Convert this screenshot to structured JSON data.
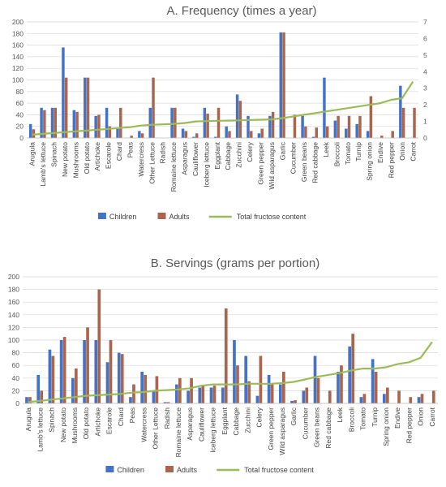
{
  "chart_data": [
    {
      "type": "bar",
      "title": "A. Frequency (times a year)",
      "xlabel": "",
      "ylabel": "",
      "ylim": [
        0,
        200
      ],
      "y_ticks": [
        "0",
        "20",
        "40",
        "60",
        "80",
        "100",
        "120",
        "140",
        "160",
        "180",
        "200"
      ],
      "y2lim": [
        0,
        7
      ],
      "y2_ticks": [
        "0",
        "1",
        "2",
        "3",
        "4",
        "5",
        "6",
        "7"
      ],
      "grid": true,
      "legend_position": "bottom",
      "categories": [
        "Arugula",
        "Lamb's lettuce",
        "Spinach",
        "New potato",
        "Mushrooms",
        "Old potato",
        "Artichoke",
        "Escarole",
        "Chard",
        "Peas",
        "Watercress",
        "Other Lettuce",
        "Radish",
        "Romaine lettuce",
        "Asparagus",
        "Cauliflower",
        "Iceberg lettuce",
        "Eggplant",
        "Cabbage",
        "Zucchini",
        "Celery",
        "Green pepper",
        "Wild asparagus",
        "Garlic",
        "Cucumber",
        "Green beans",
        "Red cabbage",
        "Leek",
        "Broccoli",
        "Tomato",
        "Turnip",
        "Spring onion",
        "Endive",
        "Red pepper",
        "Onion",
        "Carrot"
      ],
      "series": [
        {
          "name": "Children",
          "kind": "bar",
          "axis": "left",
          "color": "#4472c4",
          "values": [
            24,
            52,
            52,
            156,
            48,
            104,
            38,
            52,
            16,
            0,
            12,
            52,
            0,
            52,
            16,
            2,
            52,
            2,
            20,
            75,
            38,
            8,
            38,
            182,
            0,
            38,
            2,
            104,
            30,
            16,
            24,
            12,
            0,
            0,
            90,
            0
          ]
        },
        {
          "name": "Adults",
          "kind": "bar",
          "axis": "left",
          "color": "#a9654e",
          "values": [
            15,
            48,
            52,
            104,
            45,
            104,
            40,
            20,
            52,
            4,
            8,
            104,
            0,
            52,
            12,
            8,
            42,
            52,
            12,
            64,
            12,
            16,
            45,
            182,
            40,
            20,
            18,
            20,
            38,
            38,
            38,
            72,
            4,
            12,
            52,
            52
          ]
        },
        {
          "name": "Total fructose content",
          "kind": "line",
          "axis": "right",
          "color": "#9bbb59",
          "values": [
            0.2,
            0.25,
            0.3,
            0.35,
            0.4,
            0.45,
            0.5,
            0.55,
            0.6,
            0.65,
            0.75,
            0.8,
            0.82,
            0.85,
            0.9,
            1.0,
            1.02,
            1.04,
            1.05,
            1.06,
            1.08,
            1.1,
            1.12,
            1.2,
            1.3,
            1.4,
            1.5,
            1.6,
            1.7,
            1.8,
            1.9,
            2.0,
            2.1,
            2.3,
            2.4,
            3.4
          ]
        }
      ]
    },
    {
      "type": "bar",
      "title": "B. Servings (grams per portion)",
      "xlabel": "",
      "ylabel": "",
      "ylim": [
        0,
        200
      ],
      "y_ticks": [
        "0",
        "20",
        "40",
        "60",
        "80",
        "100",
        "120",
        "140",
        "160",
        "180",
        "200"
      ],
      "grid": true,
      "legend_position": "bottom",
      "categories": [
        "Arugula",
        "Lamb's lettuce",
        "Spinach",
        "New potato",
        "Mushrooms",
        "Old potato",
        "Artichoke",
        "Escarole",
        "Chard",
        "Peas",
        "Watercress",
        "Other Lettuce",
        "Radish",
        "Romaine lettuce",
        "Asparagus",
        "Cauliflower",
        "Iceberg lettuce",
        "Eggplant",
        "Cabbage",
        "Zucchini",
        "Celery",
        "Green pepper",
        "Wild asparagus",
        "Garlic",
        "Cucumber",
        "Green beans",
        "Red cabbage",
        "Leek",
        "Broccoli",
        "Tomato",
        "Turnip",
        "Spring onion",
        "Endive",
        "Red pepper",
        "Onion",
        "Carrot"
      ],
      "series": [
        {
          "name": "Children",
          "kind": "bar",
          "color": "#4472c4",
          "values": [
            10,
            45,
            85,
            100,
            40,
            100,
            100,
            65,
            80,
            10,
            50,
            20,
            2,
            30,
            20,
            25,
            25,
            25,
            100,
            75,
            12,
            45,
            30,
            4,
            20,
            75,
            0,
            50,
            90,
            10,
            70,
            15,
            0,
            0,
            10,
            0
          ]
        },
        {
          "name": "Adults",
          "kind": "bar",
          "color": "#a9654e",
          "values": [
            10,
            20,
            75,
            105,
            55,
            120,
            180,
            100,
            78,
            30,
            45,
            43,
            2,
            40,
            40,
            28,
            28,
            150,
            60,
            35,
            75,
            30,
            50,
            5,
            25,
            40,
            20,
            60,
            110,
            15,
            50,
            25,
            20,
            10,
            15,
            20
          ]
        },
        {
          "name": "Total fructose content",
          "kind": "line",
          "color": "#9bbb59",
          "values": [
            2,
            4,
            6,
            8,
            10,
            12,
            13,
            14,
            15,
            17,
            18,
            20,
            21,
            22,
            24,
            28,
            30,
            30,
            30,
            31,
            31,
            31,
            32,
            34,
            38,
            42,
            45,
            48,
            52,
            55,
            55,
            57,
            62,
            65,
            72,
            97
          ]
        }
      ]
    }
  ]
}
